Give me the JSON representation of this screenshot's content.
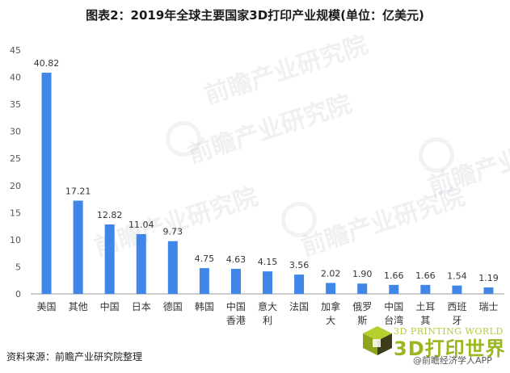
{
  "title": "图表2：2019年全球主要国家3D打印产业规模(单位：亿美元)",
  "source": "资料来源：前瞻产业研究院整理",
  "watermark": {
    "main": "前瞻产业研究院",
    "sub": "前瞻产业研究院"
  },
  "brand": {
    "latin": "3D PRINTING WORLD",
    "name": "3D打印世界",
    "sub": "@前瞻经济学人APP",
    "colors": {
      "green": "#9ab721",
      "dark": "#3d3d1e"
    }
  },
  "chart_data": {
    "type": "bar",
    "categories": [
      "美国",
      "其他",
      "中国",
      "日本",
      "德国",
      "韩国",
      "中国\n香港",
      "意大\n利",
      "法国",
      "加拿\n大",
      "俄罗\n斯",
      "中国\n台湾",
      "土耳\n其",
      "西班\n牙",
      "瑞士"
    ],
    "values": [
      40.82,
      17.21,
      12.82,
      11.04,
      9.73,
      4.75,
      4.63,
      4.15,
      3.56,
      2.02,
      1.9,
      1.66,
      1.66,
      1.54,
      1.19
    ],
    "value_labels": [
      "40.82",
      "17.21",
      "12.82",
      "11.04",
      "9.73",
      "4.75",
      "4.63",
      "4.15",
      "3.56",
      "2.02",
      "1.90",
      "1.66",
      "1.66",
      "1.54",
      "1.19"
    ],
    "yticks": [
      0,
      5,
      10,
      15,
      20,
      25,
      30,
      35,
      40,
      45
    ],
    "ylim": [
      0,
      45
    ],
    "grid": false,
    "bar_color": "#3f86e8"
  }
}
